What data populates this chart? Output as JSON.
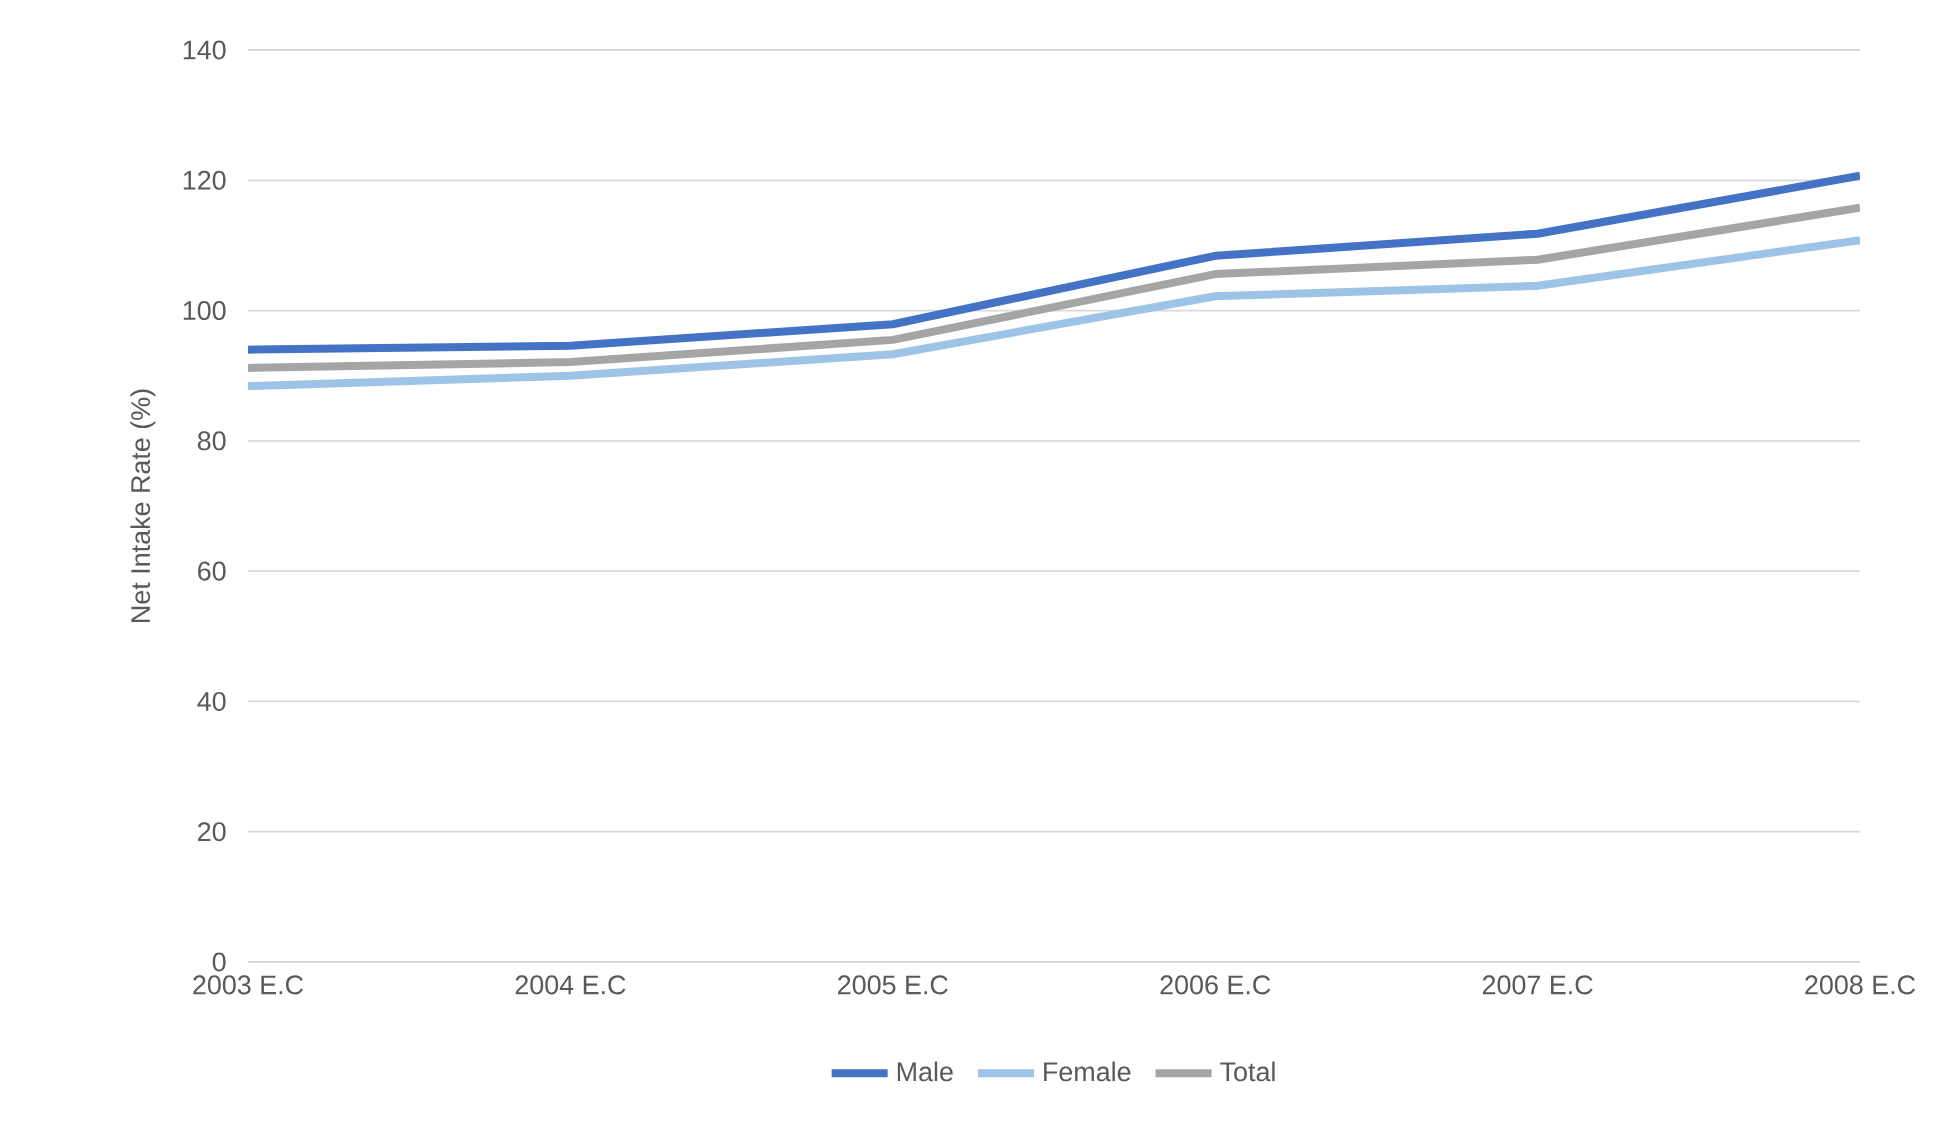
{
  "chart_data": {
    "type": "line",
    "ylabel": "Net Intake Rate (%)",
    "categories": [
      "2003 E.C",
      "2004 E.C",
      "2005 E.C",
      "2006 E.C",
      "2007 E.C",
      "2008 E.C"
    ],
    "series": [
      {
        "name": "Male",
        "color": "#4472c4",
        "values": [
          94.0,
          94.6,
          97.9,
          108.4,
          111.8,
          120.7
        ]
      },
      {
        "name": "Female",
        "color": "#9dc3e6",
        "values": [
          88.4,
          90.0,
          93.3,
          102.2,
          103.8,
          110.8
        ]
      },
      {
        "name": "Total",
        "color": "#a5a5a5",
        "values": [
          91.2,
          92.1,
          95.5,
          105.6,
          107.8,
          115.8
        ]
      }
    ],
    "ylim": [
      0,
      140
    ],
    "yticks": [
      0,
      20,
      40,
      60,
      80,
      100,
      120,
      140
    ],
    "grid": "y",
    "legend": "bottom",
    "marker": "none",
    "line_style": "solid"
  }
}
